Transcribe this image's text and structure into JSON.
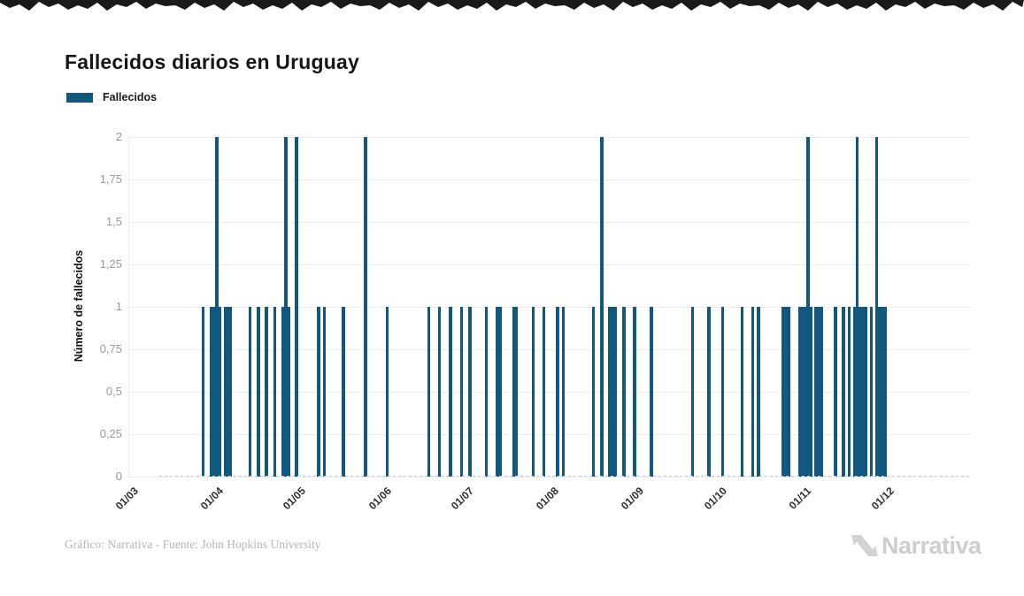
{
  "page": {
    "title": "Fallecidos diarios en Uruguay"
  },
  "legend": {
    "items": [
      {
        "label": "Fallecidos",
        "color": "#10587d"
      }
    ]
  },
  "footer": {
    "attribution": "Gráfico: Narrativa - Fuente: John Hopkins University",
    "logo_text": "Narrativa"
  },
  "chart_data": {
    "type": "bar",
    "title": "Fallecidos diarios en Uruguay",
    "xlabel": "",
    "ylabel": "Número de fallecidos",
    "ylim": [
      0,
      2
    ],
    "grid": true,
    "legend_position": "top-left",
    "ytick_labels": [
      "0",
      "0,25",
      "0,5",
      "0,75",
      "1",
      "1,25",
      "1,5",
      "1,75",
      "2"
    ],
    "ytick_values": [
      0,
      0.25,
      0.5,
      0.75,
      1,
      1.25,
      1.5,
      1.75,
      2
    ],
    "xtick_labels": [
      "01/03",
      "01/04",
      "01/05",
      "01/06",
      "01/07",
      "01/08",
      "01/09",
      "01/10",
      "01/11",
      "01/12"
    ],
    "x_start_date": "2020-03-01",
    "series": [
      {
        "name": "Fallecidos",
        "color": "#10587d",
        "points": [
          [
            "2020-03-26",
            1
          ],
          [
            "2020-03-29",
            1
          ],
          [
            "2020-03-30",
            1
          ],
          [
            "2020-03-31",
            2
          ],
          [
            "2020-04-01",
            1
          ],
          [
            "2020-04-03",
            1
          ],
          [
            "2020-04-04",
            1
          ],
          [
            "2020-04-05",
            1
          ],
          [
            "2020-04-12",
            1
          ],
          [
            "2020-04-15",
            1
          ],
          [
            "2020-04-18",
            1
          ],
          [
            "2020-04-21",
            1
          ],
          [
            "2020-04-24",
            1
          ],
          [
            "2020-04-25",
            2
          ],
          [
            "2020-04-26",
            1
          ],
          [
            "2020-04-29",
            2
          ],
          [
            "2020-05-07",
            1
          ],
          [
            "2020-05-09",
            1
          ],
          [
            "2020-05-16",
            1
          ],
          [
            "2020-05-24",
            2
          ],
          [
            "2020-06-01",
            1
          ],
          [
            "2020-06-16",
            1
          ],
          [
            "2020-06-20",
            1
          ],
          [
            "2020-06-24",
            1
          ],
          [
            "2020-06-28",
            1
          ],
          [
            "2020-07-01",
            1
          ],
          [
            "2020-07-07",
            1
          ],
          [
            "2020-07-11",
            1
          ],
          [
            "2020-07-12",
            1
          ],
          [
            "2020-07-17",
            1
          ],
          [
            "2020-07-18",
            1
          ],
          [
            "2020-07-24",
            1
          ],
          [
            "2020-07-28",
            1
          ],
          [
            "2020-08-02",
            1
          ],
          [
            "2020-08-04",
            1
          ],
          [
            "2020-08-15",
            1
          ],
          [
            "2020-08-18",
            2
          ],
          [
            "2020-08-21",
            1
          ],
          [
            "2020-08-22",
            1
          ],
          [
            "2020-08-23",
            1
          ],
          [
            "2020-08-26",
            1
          ],
          [
            "2020-08-30",
            1
          ],
          [
            "2020-09-05",
            1
          ],
          [
            "2020-09-20",
            1
          ],
          [
            "2020-09-26",
            1
          ],
          [
            "2020-10-01",
            1
          ],
          [
            "2020-10-08",
            1
          ],
          [
            "2020-10-12",
            1
          ],
          [
            "2020-10-14",
            1
          ],
          [
            "2020-10-23",
            1
          ],
          [
            "2020-10-24",
            1
          ],
          [
            "2020-10-25",
            1
          ],
          [
            "2020-10-29",
            1
          ],
          [
            "2020-10-30",
            1
          ],
          [
            "2020-10-31",
            1
          ],
          [
            "2020-11-01",
            2
          ],
          [
            "2020-11-02",
            1
          ],
          [
            "2020-11-04",
            1
          ],
          [
            "2020-11-05",
            1
          ],
          [
            "2020-11-06",
            1
          ],
          [
            "2020-11-11",
            1
          ],
          [
            "2020-11-14",
            1
          ],
          [
            "2020-11-16",
            1
          ],
          [
            "2020-11-18",
            1
          ],
          [
            "2020-11-19",
            2
          ],
          [
            "2020-11-20",
            1
          ],
          [
            "2020-11-21",
            1
          ],
          [
            "2020-11-22",
            1
          ],
          [
            "2020-11-24",
            1
          ],
          [
            "2020-11-26",
            2
          ],
          [
            "2020-11-27",
            1
          ],
          [
            "2020-11-28",
            1
          ],
          [
            "2020-11-29",
            1
          ]
        ]
      }
    ]
  }
}
